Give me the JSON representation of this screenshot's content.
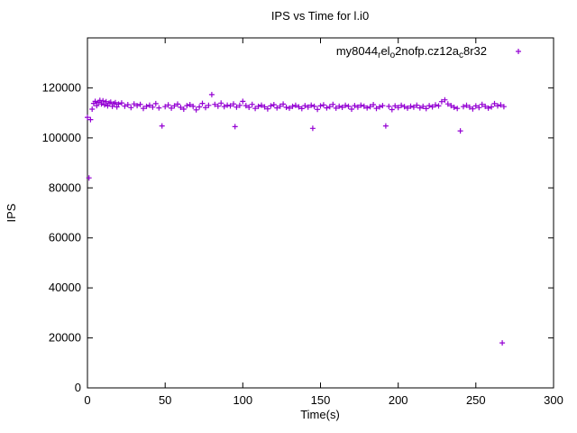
{
  "title": "IPS vs Time for l.i0",
  "legend": {
    "full_name": "my8044_rel_o2nofp.cz12a_c8r32",
    "segments": [
      {
        "t": "my8044"
      },
      {
        "t": "r",
        "sub": true
      },
      {
        "t": "el"
      },
      {
        "t": "o",
        "sub": true
      },
      {
        "t": "2nofp.cz12a"
      },
      {
        "t": "c",
        "sub": true
      },
      {
        "t": "8r32"
      }
    ],
    "marker": "+"
  },
  "colors": {
    "point": "#9400d3",
    "axis": "#000000",
    "text": "#000000",
    "background": "#ffffff"
  },
  "chart_data": {
    "type": "scatter",
    "title": "IPS vs Time for l.i0",
    "xlabel": "Time(s)",
    "ylabel": "IPS",
    "xlim": [
      0,
      300
    ],
    "ylim": [
      0,
      140000
    ],
    "xticks": [
      0,
      50,
      100,
      150,
      200,
      250,
      300
    ],
    "yticks": [
      0,
      20000,
      40000,
      60000,
      80000,
      100000,
      120000
    ],
    "grid": false,
    "legend_position": "top-right-inside",
    "marker": "plus",
    "series": [
      {
        "name": "my8044_rel_o2nofp.cz12a_c8r32",
        "color": "#9400d3",
        "points": [
          [
            0,
            108200
          ],
          [
            1,
            84000
          ],
          [
            2,
            107300
          ],
          [
            3,
            111500
          ],
          [
            4,
            113800
          ],
          [
            5,
            114600
          ],
          [
            6,
            112900
          ],
          [
            7,
            114200
          ],
          [
            8,
            115000
          ],
          [
            9,
            113600
          ],
          [
            10,
            114800
          ],
          [
            11,
            113200
          ],
          [
            12,
            114500
          ],
          [
            13,
            112800
          ],
          [
            14,
            113900
          ],
          [
            15,
            114300
          ],
          [
            16,
            112600
          ],
          [
            17,
            113700
          ],
          [
            18,
            114100
          ],
          [
            19,
            112400
          ],
          [
            20,
            113500
          ],
          [
            22,
            114000
          ],
          [
            24,
            112700
          ],
          [
            26,
            113300
          ],
          [
            28,
            112100
          ],
          [
            30,
            113600
          ],
          [
            32,
            112900
          ],
          [
            34,
            113400
          ],
          [
            36,
            111800
          ],
          [
            38,
            112600
          ],
          [
            40,
            113100
          ],
          [
            42,
            112300
          ],
          [
            44,
            113700
          ],
          [
            46,
            112000
          ],
          [
            48,
            104800
          ],
          [
            50,
            112500
          ],
          [
            52,
            113200
          ],
          [
            54,
            111900
          ],
          [
            56,
            112800
          ],
          [
            58,
            113500
          ],
          [
            60,
            112200
          ],
          [
            62,
            111500
          ],
          [
            64,
            112900
          ],
          [
            66,
            113300
          ],
          [
            68,
            112600
          ],
          [
            70,
            111200
          ],
          [
            72,
            112400
          ],
          [
            74,
            113800
          ],
          [
            76,
            112100
          ],
          [
            78,
            113000
          ],
          [
            80,
            117300
          ],
          [
            82,
            113400
          ],
          [
            84,
            112700
          ],
          [
            86,
            113900
          ],
          [
            88,
            112500
          ],
          [
            90,
            113100
          ],
          [
            92,
            112800
          ],
          [
            94,
            113600
          ],
          [
            95,
            104500
          ],
          [
            96,
            112300
          ],
          [
            98,
            113000
          ],
          [
            100,
            114600
          ],
          [
            102,
            112900
          ],
          [
            104,
            112200
          ],
          [
            106,
            113400
          ],
          [
            108,
            111800
          ],
          [
            110,
            112600
          ],
          [
            112,
            113100
          ],
          [
            114,
            112400
          ],
          [
            116,
            111600
          ],
          [
            118,
            112800
          ],
          [
            120,
            113300
          ],
          [
            122,
            112000
          ],
          [
            124,
            112700
          ],
          [
            126,
            113500
          ],
          [
            128,
            112200
          ],
          [
            130,
            111900
          ],
          [
            132,
            112600
          ],
          [
            134,
            113000
          ],
          [
            136,
            112400
          ],
          [
            138,
            111700
          ],
          [
            140,
            112900
          ],
          [
            142,
            112300
          ],
          [
            144,
            113100
          ],
          [
            145,
            103800
          ],
          [
            146,
            112600
          ],
          [
            148,
            111400
          ],
          [
            150,
            112800
          ],
          [
            152,
            113200
          ],
          [
            154,
            112000
          ],
          [
            156,
            112500
          ],
          [
            158,
            113400
          ],
          [
            160,
            111900
          ],
          [
            162,
            112700
          ],
          [
            164,
            112200
          ],
          [
            166,
            113000
          ],
          [
            168,
            112600
          ],
          [
            170,
            111500
          ],
          [
            172,
            112900
          ],
          [
            174,
            112300
          ],
          [
            176,
            113100
          ],
          [
            178,
            112700
          ],
          [
            180,
            112000
          ],
          [
            182,
            112500
          ],
          [
            184,
            113300
          ],
          [
            186,
            111800
          ],
          [
            188,
            112400
          ],
          [
            190,
            112900
          ],
          [
            192,
            104800
          ],
          [
            194,
            112600
          ],
          [
            196,
            111300
          ],
          [
            198,
            112800
          ],
          [
            200,
            112100
          ],
          [
            202,
            113000
          ],
          [
            204,
            112500
          ],
          [
            206,
            111900
          ],
          [
            208,
            112700
          ],
          [
            210,
            112300
          ],
          [
            212,
            113100
          ],
          [
            214,
            112000
          ],
          [
            216,
            112600
          ],
          [
            218,
            111700
          ],
          [
            220,
            112900
          ],
          [
            222,
            112400
          ],
          [
            224,
            113200
          ],
          [
            226,
            112800
          ],
          [
            228,
            114500
          ],
          [
            230,
            115200
          ],
          [
            232,
            113600
          ],
          [
            234,
            112900
          ],
          [
            236,
            112200
          ],
          [
            238,
            111800
          ],
          [
            240,
            102800
          ],
          [
            242,
            112500
          ],
          [
            244,
            113000
          ],
          [
            246,
            112300
          ],
          [
            248,
            111600
          ],
          [
            250,
            112800
          ],
          [
            252,
            112100
          ],
          [
            254,
            113400
          ],
          [
            256,
            112600
          ],
          [
            258,
            111900
          ],
          [
            260,
            112400
          ],
          [
            262,
            113700
          ],
          [
            264,
            112800
          ],
          [
            266,
            113200
          ],
          [
            267,
            18000
          ],
          [
            268,
            112500
          ]
        ]
      }
    ]
  }
}
